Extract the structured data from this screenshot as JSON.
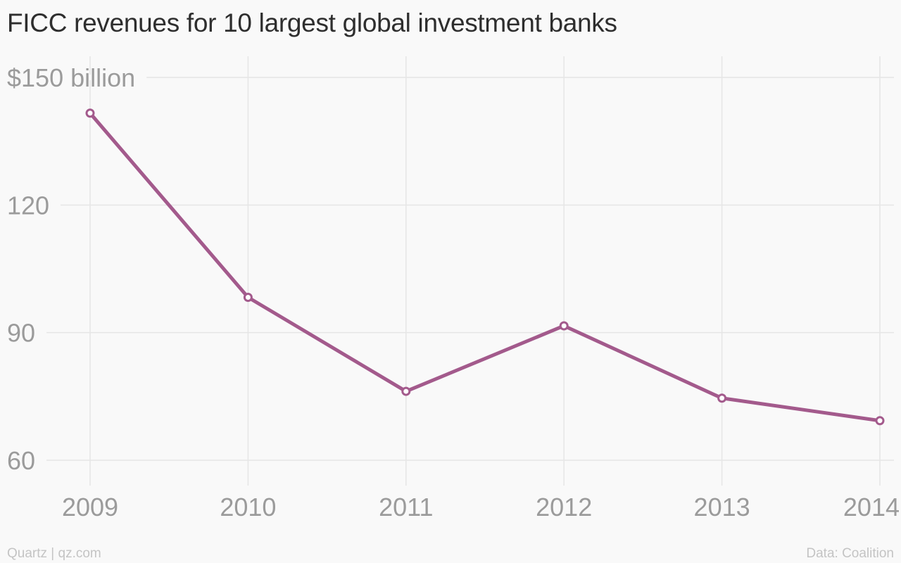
{
  "header": {
    "title": "FICC revenues for 10 largest global investment banks"
  },
  "footer": {
    "credit": "Quartz | qz.com",
    "source": "Data: Coalition"
  },
  "colors": {
    "series": "#a35a8c",
    "grid": "#e6e6e6",
    "tick_label": "#9b9b9b",
    "background": "#f9f9f9"
  },
  "chart_data": {
    "type": "line",
    "title": "FICC revenues for 10 largest global investment banks",
    "xlabel": "",
    "ylabel": "",
    "x": [
      "2009",
      "2010",
      "2011",
      "2012",
      "2013",
      "2014"
    ],
    "series": [
      {
        "values": [
          141.6,
          98.3,
          76.2,
          91.6,
          74.6,
          69.3
        ]
      }
    ],
    "ylim": [
      60,
      150
    ],
    "y_ticks": [
      60,
      90,
      120,
      150
    ],
    "y_tick_labels": [
      "60",
      "90",
      "120",
      "$150 billion"
    ],
    "grid": true,
    "legend": "none",
    "markers": "hollow-circle"
  }
}
